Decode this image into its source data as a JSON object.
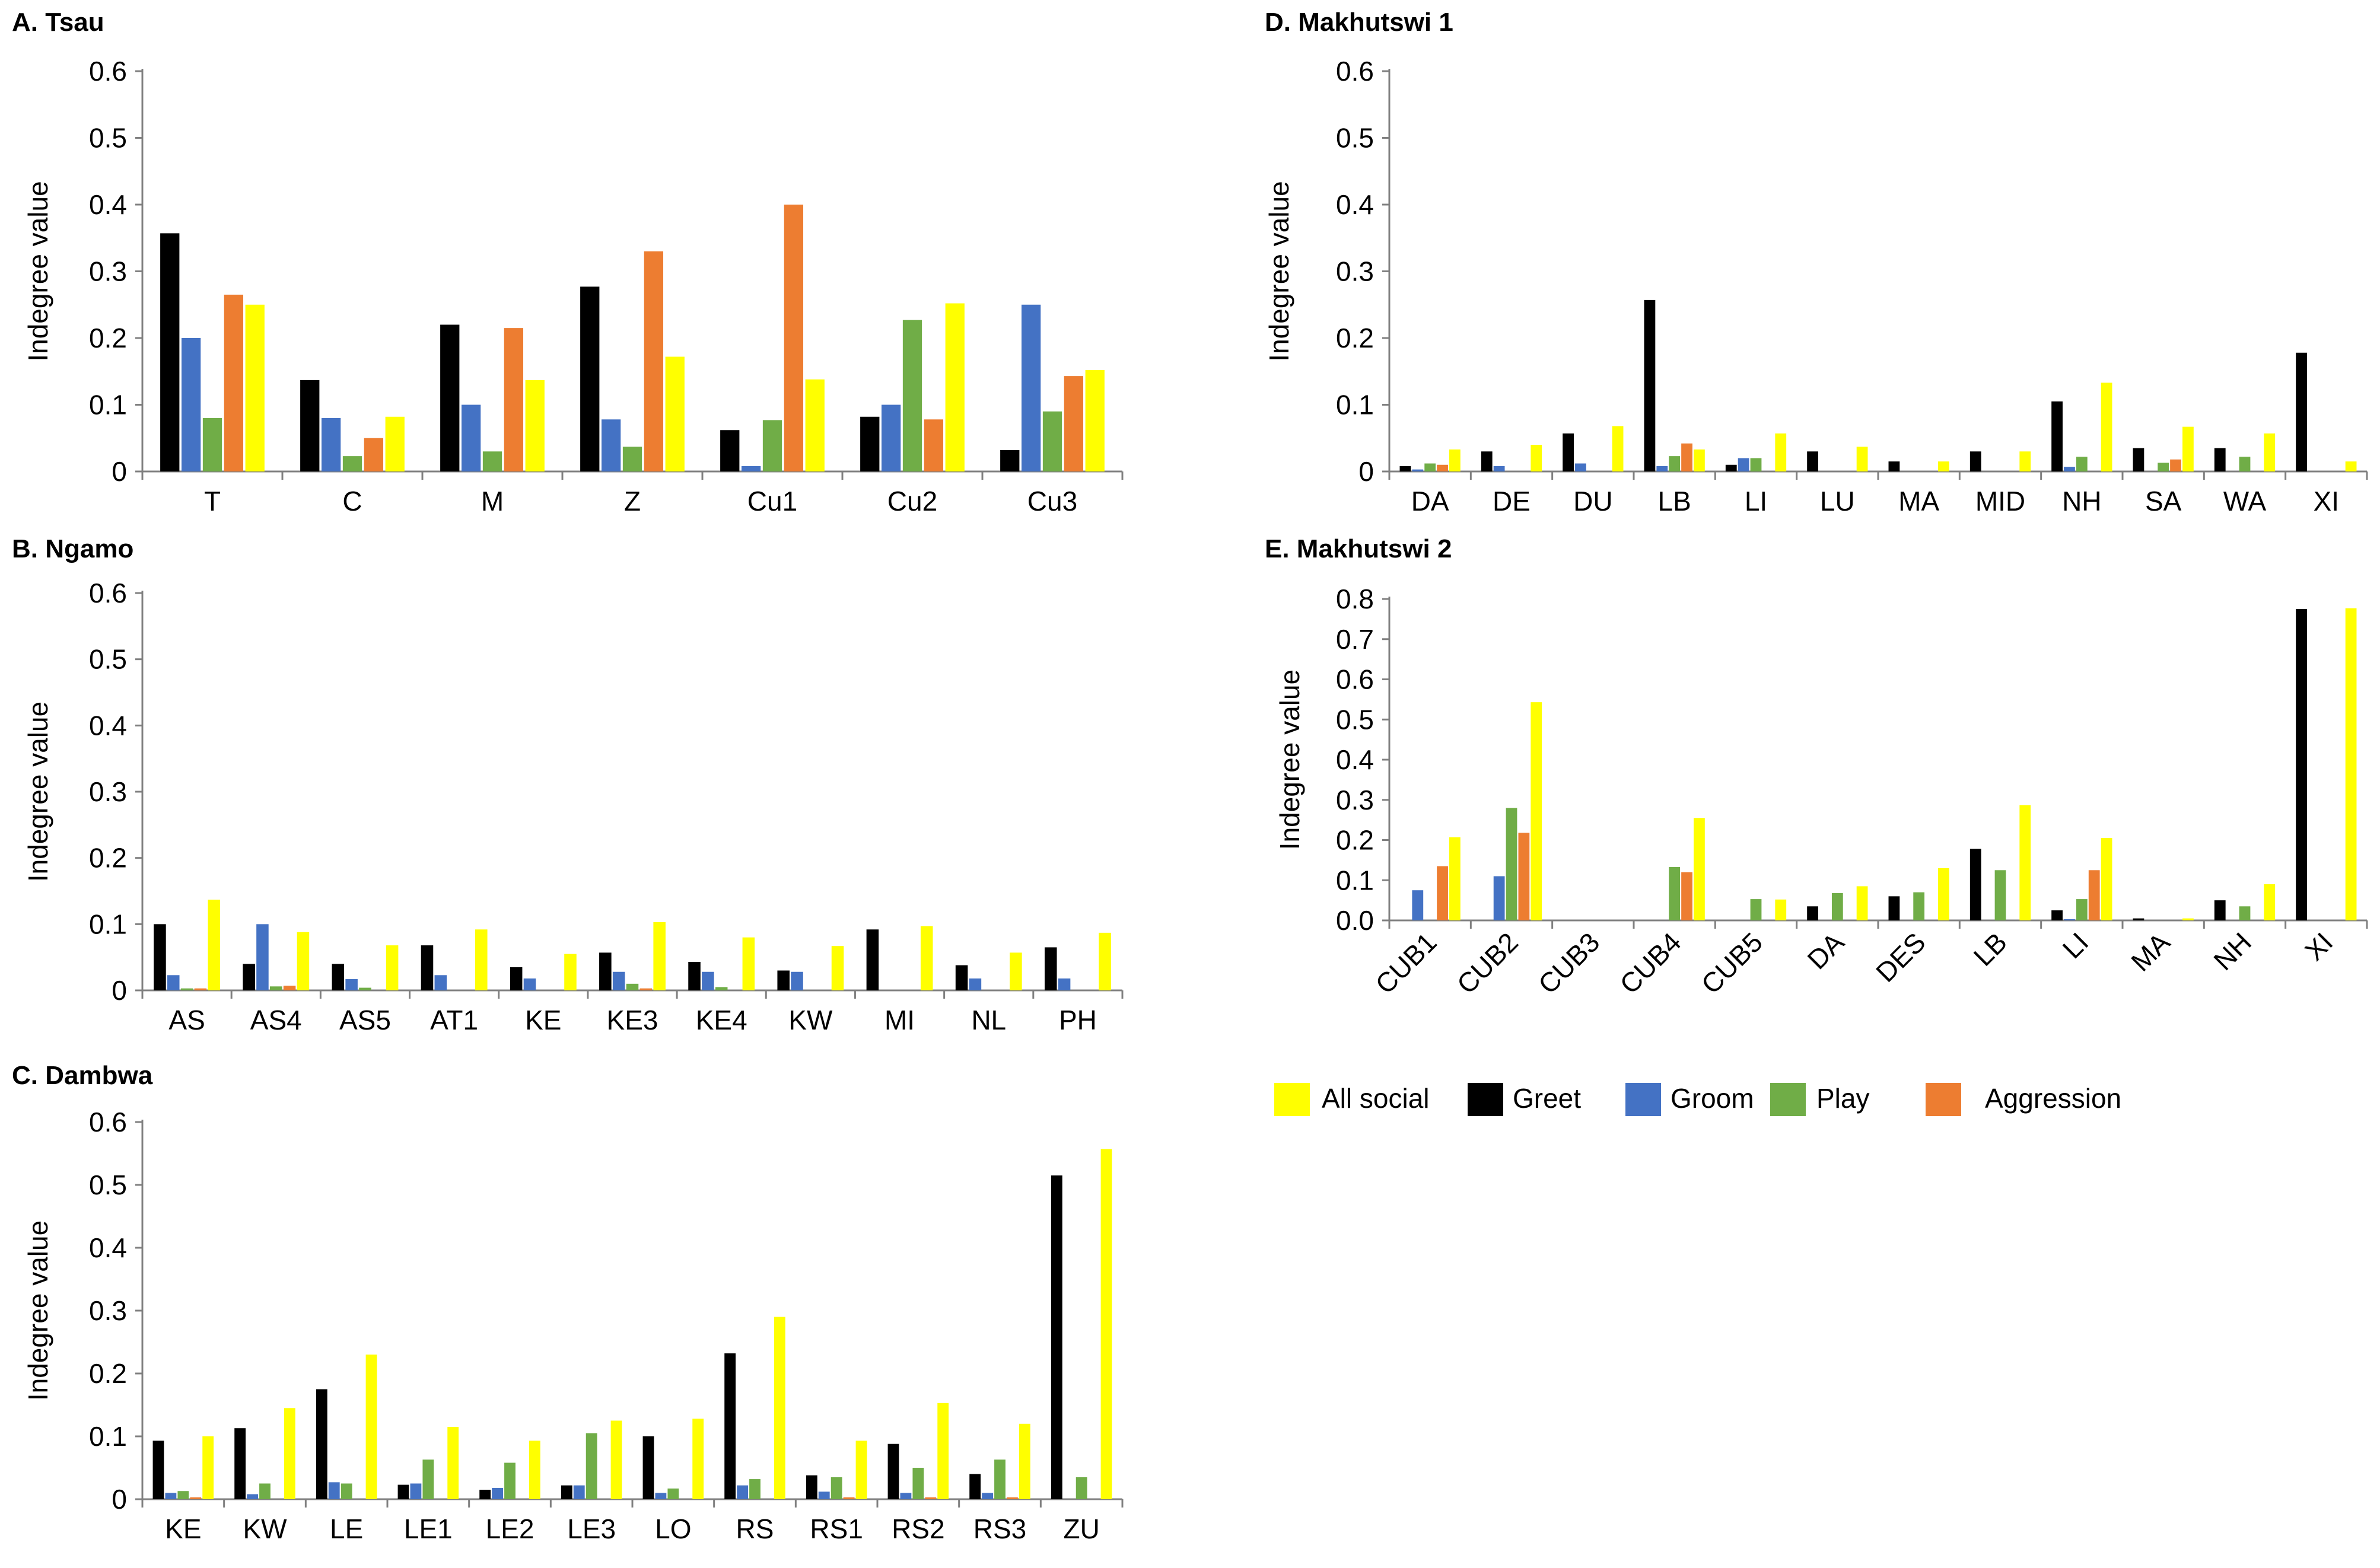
{
  "colors": {
    "all_social": "#FFFF00",
    "greet": "#000000",
    "groom": "#4472C4",
    "play": "#70AD47",
    "aggression": "#ED7D31"
  },
  "legend": {
    "all_social": "All social",
    "greet": "Greet",
    "groom": "Groom",
    "play": "Play",
    "aggression": "Aggression"
  },
  "chart_data": [
    {
      "id": "A",
      "type": "bar",
      "title": "A. Tsau",
      "ylabel": "Indegree value",
      "ylim": [
        0,
        0.6
      ],
      "yticks": [
        "0",
        "0.1",
        "0.2",
        "0.3",
        "0.4",
        "0.5",
        "0.6"
      ],
      "categories": [
        "T",
        "C",
        "M",
        "Z",
        "Cu1",
        "Cu2",
        "Cu3"
      ],
      "series": [
        {
          "name": "Greet",
          "key": "greet",
          "values": [
            0.357,
            0.137,
            0.22,
            0.277,
            0.062,
            0.082,
            0.032
          ]
        },
        {
          "name": "Groom",
          "key": "groom",
          "values": [
            0.2,
            0.08,
            0.1,
            0.078,
            0.008,
            0.1,
            0.25
          ]
        },
        {
          "name": "Play",
          "key": "play",
          "values": [
            0.08,
            0.023,
            0.03,
            0.037,
            0.077,
            0.227,
            0.09
          ]
        },
        {
          "name": "Aggression",
          "key": "aggression",
          "values": [
            0.265,
            0.05,
            0.215,
            0.33,
            0.4,
            0.078,
            0.143
          ]
        },
        {
          "name": "All social",
          "key": "all_social",
          "values": [
            0.25,
            0.082,
            0.137,
            0.172,
            0.138,
            0.252,
            0.152
          ]
        }
      ]
    },
    {
      "id": "B",
      "type": "bar",
      "title": "B. Ngamo",
      "ylabel": "Indegree value",
      "ylim": [
        0,
        0.6
      ],
      "yticks": [
        "0",
        "0.1",
        "0.2",
        "0.3",
        "0.4",
        "0.5",
        "0.6"
      ],
      "categories": [
        "AS",
        "AS4",
        "AS5",
        "AT1",
        "KE",
        "KE3",
        "KE4",
        "KW",
        "MI",
        "NL",
        "PH"
      ],
      "series": [
        {
          "name": "Greet",
          "key": "greet",
          "values": [
            0.1,
            0.04,
            0.04,
            0.068,
            0.035,
            0.057,
            0.043,
            0.03,
            0.092,
            0.038,
            0.065
          ]
        },
        {
          "name": "Groom",
          "key": "groom",
          "values": [
            0.023,
            0.1,
            0.017,
            0.023,
            0.018,
            0.028,
            0.028,
            0.028,
            0,
            0.018,
            0.018
          ]
        },
        {
          "name": "Play",
          "key": "play",
          "values": [
            0.003,
            0.006,
            0.004,
            0,
            0,
            0.01,
            0.005,
            0,
            0,
            0,
            0
          ]
        },
        {
          "name": "Aggression",
          "key": "aggression",
          "values": [
            0.003,
            0.007,
            0,
            0,
            0,
            0.003,
            0,
            0,
            0,
            0,
            0
          ]
        },
        {
          "name": "All social",
          "key": "all_social",
          "values": [
            0.137,
            0.088,
            0.068,
            0.092,
            0.055,
            0.103,
            0.08,
            0.067,
            0.097,
            0.057,
            0.087
          ]
        }
      ]
    },
    {
      "id": "C",
      "type": "bar",
      "title": "C. Dambwa",
      "ylabel": "Indegree value",
      "ylim": [
        0,
        0.6
      ],
      "yticks": [
        "0",
        "0.1",
        "0.2",
        "0.3",
        "0.4",
        "0.5",
        "0.6"
      ],
      "categories": [
        "KE",
        "KW",
        "LE",
        "LE1",
        "LE2",
        "LE3",
        "LO",
        "RS",
        "RS1",
        "RS2",
        "RS3",
        "ZU"
      ],
      "series": [
        {
          "name": "Greet",
          "key": "greet",
          "values": [
            0.093,
            0.113,
            0.175,
            0.023,
            0.015,
            0.022,
            0.1,
            0.232,
            0.038,
            0.088,
            0.04,
            0.515
          ]
        },
        {
          "name": "Groom",
          "key": "groom",
          "values": [
            0.01,
            0.008,
            0.027,
            0.025,
            0.018,
            0.022,
            0.01,
            0.022,
            0.012,
            0.01,
            0.01,
            0
          ]
        },
        {
          "name": "Play",
          "key": "play",
          "values": [
            0.013,
            0.025,
            0.025,
            0.063,
            0.058,
            0.105,
            0.017,
            0.032,
            0.035,
            0.05,
            0.063,
            0.035
          ]
        },
        {
          "name": "Aggression",
          "key": "aggression",
          "values": [
            0.003,
            0,
            0,
            0,
            0,
            0,
            0,
            0,
            0.003,
            0.003,
            0.003,
            0
          ]
        },
        {
          "name": "All social",
          "key": "all_social",
          "values": [
            0.1,
            0.145,
            0.23,
            0.115,
            0.093,
            0.125,
            0.128,
            0.29,
            0.093,
            0.153,
            0.12,
            0.557
          ]
        }
      ]
    },
    {
      "id": "D",
      "type": "bar",
      "title": "D. Makhutswi 1",
      "ylabel": "Indegree value",
      "ylim": [
        0,
        0.6
      ],
      "yticks": [
        "0",
        "0.1",
        "0.2",
        "0.3",
        "0.4",
        "0.5",
        "0.6"
      ],
      "categories": [
        "DA",
        "DE",
        "DU",
        "LB",
        "LI",
        "LU",
        "MA",
        "MID",
        "NH",
        "SA",
        "WA",
        "XI"
      ],
      "series": [
        {
          "name": "Greet",
          "key": "greet",
          "values": [
            0.008,
            0.03,
            0.057,
            0.257,
            0.01,
            0.03,
            0.015,
            0.03,
            0.105,
            0.035,
            0.035,
            0.178
          ]
        },
        {
          "name": "Groom",
          "key": "groom",
          "values": [
            0.003,
            0.008,
            0.012,
            0.008,
            0.02,
            0,
            0,
            0,
            0.007,
            0,
            0,
            0
          ]
        },
        {
          "name": "Play",
          "key": "play",
          "values": [
            0.012,
            0,
            0,
            0.023,
            0.02,
            0,
            0,
            0,
            0.022,
            0.013,
            0.022,
            0
          ]
        },
        {
          "name": "Aggression",
          "key": "aggression",
          "values": [
            0.01,
            0,
            0,
            0.042,
            0,
            0,
            0,
            0,
            0,
            0.018,
            0,
            0
          ]
        },
        {
          "name": "All social",
          "key": "all_social",
          "values": [
            0.033,
            0.04,
            0.068,
            0.033,
            0.057,
            0.037,
            0.015,
            0.03,
            0.133,
            0.067,
            0.057,
            0.015
          ]
        }
      ]
    },
    {
      "id": "E",
      "type": "bar",
      "title": "E. Makhutswi 2",
      "ylabel": "Indegree value",
      "ylim": [
        0,
        0.8
      ],
      "yticks": [
        "0.0",
        "0.1",
        "0.2",
        "0.3",
        "0.4",
        "0.5",
        "0.6",
        "0.7",
        "0.8"
      ],
      "categories": [
        "CUB1",
        "CUB2",
        "CUB3",
        "CUB4",
        "CUB5",
        "DA",
        "DES",
        "LB",
        "LI",
        "MA",
        "NH",
        "XI"
      ],
      "series": [
        {
          "name": "Greet",
          "key": "greet",
          "values": [
            0,
            0,
            0,
            0,
            0,
            0.035,
            0.06,
            0.178,
            0.025,
            0.005,
            0.05,
            0.775
          ]
        },
        {
          "name": "Groom",
          "key": "groom",
          "values": [
            0.075,
            0.11,
            0,
            0,
            0,
            0,
            0,
            0,
            0.003,
            0,
            0,
            0
          ]
        },
        {
          "name": "Play",
          "key": "play",
          "values": [
            0,
            0.28,
            0,
            0.133,
            0.053,
            0.068,
            0.07,
            0.125,
            0.053,
            0,
            0.035,
            0
          ]
        },
        {
          "name": "Aggression",
          "key": "aggression",
          "values": [
            0.135,
            0.218,
            0,
            0.12,
            0,
            0,
            0,
            0,
            0.125,
            0,
            0,
            0
          ]
        },
        {
          "name": "All social",
          "key": "all_social",
          "values": [
            0.207,
            0.543,
            0,
            0.255,
            0.052,
            0.085,
            0.13,
            0.287,
            0.205,
            0.005,
            0.09,
            0.777
          ]
        }
      ]
    }
  ]
}
